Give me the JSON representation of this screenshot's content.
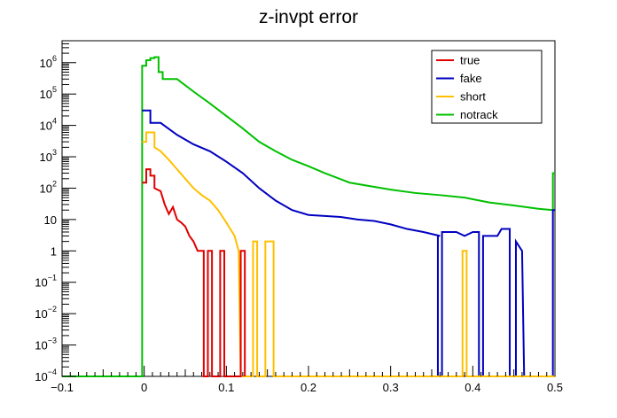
{
  "chart_data": {
    "type": "line",
    "title": "z-invpt error",
    "xlabel": "",
    "ylabel": "",
    "xlim": [
      -0.1,
      0.5
    ],
    "ylim": [
      0.0001,
      5000000
    ],
    "yscale": "log",
    "grid": false,
    "legend_position": "top-right",
    "x_ticks": [
      {
        "value": -0.1,
        "label": "−0.1"
      },
      {
        "value": 0,
        "label": "0"
      },
      {
        "value": 0.1,
        "label": "0.1"
      },
      {
        "value": 0.2,
        "label": "0.2"
      },
      {
        "value": 0.3,
        "label": "0.3"
      },
      {
        "value": 0.4,
        "label": "0.4"
      },
      {
        "value": 0.5,
        "label": "0.5"
      }
    ],
    "y_ticks": [
      {
        "value": 0.0001,
        "base": "10",
        "exp": "−4"
      },
      {
        "value": 0.001,
        "base": "10",
        "exp": "−3"
      },
      {
        "value": 0.01,
        "base": "10",
        "exp": "−2"
      },
      {
        "value": 0.1,
        "base": "10",
        "exp": "−1"
      },
      {
        "value": 1,
        "base": "1",
        "exp": ""
      },
      {
        "value": 10,
        "base": "10",
        "exp": ""
      },
      {
        "value": 100,
        "base": "10",
        "exp": "2"
      },
      {
        "value": 1000,
        "base": "10",
        "exp": "3"
      },
      {
        "value": 10000,
        "base": "10",
        "exp": "4"
      },
      {
        "value": 100000,
        "base": "10",
        "exp": "5"
      },
      {
        "value": 1000000,
        "base": "10",
        "exp": "6"
      }
    ],
    "series": [
      {
        "name": "notrack",
        "color": "#00c000",
        "points": [
          [
            -0.1,
            0.0001
          ],
          [
            -0.0025,
            0.0001
          ],
          [
            -0.0025,
            800000
          ],
          [
            0.0025,
            800000
          ],
          [
            0.0025,
            1200000
          ],
          [
            0.0075,
            1200000
          ],
          [
            0.0075,
            1400000
          ],
          [
            0.0125,
            1400000
          ],
          [
            0.0125,
            1500000
          ],
          [
            0.0175,
            1500000
          ],
          [
            0.0175,
            500000
          ],
          [
            0.0225,
            500000
          ],
          [
            0.0225,
            300000
          ],
          [
            0.04,
            300000
          ],
          [
            0.06,
            120000
          ],
          [
            0.08,
            50000
          ],
          [
            0.1,
            20000
          ],
          [
            0.12,
            8000
          ],
          [
            0.14,
            3000
          ],
          [
            0.16,
            1500
          ],
          [
            0.18,
            800
          ],
          [
            0.2,
            500
          ],
          [
            0.22,
            300
          ],
          [
            0.25,
            150
          ],
          [
            0.28,
            110
          ],
          [
            0.3,
            90
          ],
          [
            0.33,
            70
          ],
          [
            0.36,
            60
          ],
          [
            0.39,
            50
          ],
          [
            0.42,
            35
          ],
          [
            0.45,
            28
          ],
          [
            0.48,
            22
          ],
          [
            0.4975,
            20
          ],
          [
            0.4975,
            300
          ],
          [
            0.5,
            300
          ]
        ]
      },
      {
        "name": "fake",
        "color": "#0000c0",
        "points": [
          [
            -0.0025,
            30000
          ],
          [
            0.0075,
            30000
          ],
          [
            0.0075,
            12000
          ],
          [
            0.02,
            12000
          ],
          [
            0.04,
            5000
          ],
          [
            0.06,
            2500
          ],
          [
            0.08,
            1500
          ],
          [
            0.1,
            700
          ],
          [
            0.12,
            300
          ],
          [
            0.14,
            100
          ],
          [
            0.16,
            40
          ],
          [
            0.18,
            20
          ],
          [
            0.2,
            14
          ],
          [
            0.22,
            13
          ],
          [
            0.24,
            12
          ],
          [
            0.26,
            10
          ],
          [
            0.28,
            9
          ],
          [
            0.3,
            7
          ],
          [
            0.32,
            5
          ],
          [
            0.34,
            4
          ],
          [
            0.36,
            3
          ],
          [
            0.3575,
            3
          ],
          [
            0.3575,
            0.0001
          ],
          [
            0.3625,
            0.0001
          ],
          [
            0.3625,
            4
          ],
          [
            0.38,
            4
          ],
          [
            0.39,
            3
          ],
          [
            0.4,
            4
          ],
          [
            0.4075,
            4
          ],
          [
            0.4075,
            0.0001
          ],
          [
            0.4125,
            0.0001
          ],
          [
            0.4125,
            3
          ],
          [
            0.43,
            3
          ],
          [
            0.435,
            5
          ],
          [
            0.445,
            5
          ],
          [
            0.445,
            0.0001
          ],
          [
            0.4525,
            0.0001
          ],
          [
            0.4525,
            2
          ],
          [
            0.46,
            1
          ],
          [
            0.4625,
            0.0001
          ],
          [
            0.4975,
            0.0001
          ],
          [
            0.4975,
            20
          ],
          [
            0.5,
            20
          ]
        ]
      },
      {
        "name": "short",
        "color": "#ffc000",
        "points": [
          [
            -0.0025,
            3000
          ],
          [
            0.0025,
            3000
          ],
          [
            0.0025,
            6000
          ],
          [
            0.0125,
            6000
          ],
          [
            0.0125,
            2000
          ],
          [
            0.02,
            1500
          ],
          [
            0.03,
            800
          ],
          [
            0.04,
            400
          ],
          [
            0.05,
            200
          ],
          [
            0.06,
            100
          ],
          [
            0.07,
            60
          ],
          [
            0.08,
            40
          ],
          [
            0.09,
            20
          ],
          [
            0.1,
            8
          ],
          [
            0.11,
            3
          ],
          [
            0.115,
            1
          ],
          [
            0.1175,
            0.0001
          ],
          [
            0.1325,
            0.0001
          ],
          [
            0.1325,
            2
          ],
          [
            0.1375,
            2
          ],
          [
            0.1375,
            0.0001
          ],
          [
            0.1475,
            0.0001
          ],
          [
            0.1475,
            2
          ],
          [
            0.1575,
            2
          ],
          [
            0.1575,
            0.0001
          ],
          [
            0.3875,
            0.0001
          ],
          [
            0.3875,
            1
          ],
          [
            0.3925,
            1
          ],
          [
            0.3925,
            0.0001
          ],
          [
            0.5,
            0.0001
          ]
        ]
      },
      {
        "name": "true",
        "color": "#e00000",
        "points": [
          [
            -0.0025,
            150
          ],
          [
            0.0025,
            150
          ],
          [
            0.0025,
            400
          ],
          [
            0.0075,
            400
          ],
          [
            0.0075,
            250
          ],
          [
            0.0125,
            250
          ],
          [
            0.0125,
            100
          ],
          [
            0.02,
            80
          ],
          [
            0.025,
            30
          ],
          [
            0.03,
            15
          ],
          [
            0.035,
            25
          ],
          [
            0.04,
            10
          ],
          [
            0.045,
            8
          ],
          [
            0.05,
            6
          ],
          [
            0.055,
            3
          ],
          [
            0.06,
            2
          ],
          [
            0.065,
            1
          ],
          [
            0.0725,
            1
          ],
          [
            0.0725,
            0.0001
          ],
          [
            0.0775,
            0.0001
          ],
          [
            0.0775,
            1
          ],
          [
            0.0825,
            1
          ],
          [
            0.0825,
            0.0001
          ],
          [
            0.0925,
            0.0001
          ],
          [
            0.0925,
            1
          ],
          [
            0.0975,
            1
          ],
          [
            0.0975,
            0.0001
          ],
          [
            0.1175,
            0.0001
          ],
          [
            0.1175,
            1
          ],
          [
            0.1225,
            1
          ],
          [
            0.1225,
            0.0001
          ]
        ]
      }
    ],
    "legend": [
      "true",
      "fake",
      "short",
      "notrack"
    ]
  }
}
